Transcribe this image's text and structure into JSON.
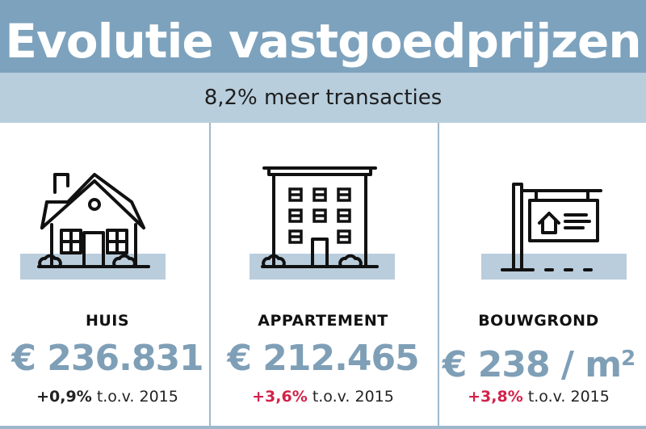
{
  "header": {
    "title": "Evolutie vastgoedprijzen",
    "subtitle": "8,2% meer transacties"
  },
  "colors": {
    "header_bg": "#7da2bd",
    "subheader_bg": "#b8cedd",
    "price_blue": "#7f9fb7",
    "ground_band": "#b9cddc",
    "positive_red": "#d2224a",
    "neutral_dark": "#222222"
  },
  "cards": [
    {
      "icon": "house-icon",
      "label": "HUIS",
      "price": "€ 236.831",
      "change_pct": "+0,9%",
      "change_text": "t.o.v. 2015",
      "change_color": "#222222"
    },
    {
      "icon": "apartment-building-icon",
      "label": "APPARTEMENT",
      "price": "€ 212.465",
      "change_pct": "+3,6%",
      "change_text": "t.o.v. 2015",
      "change_color": "#d2224a"
    },
    {
      "icon": "land-sign-icon",
      "label": "BOUWGROND",
      "price": "€ 238 / m",
      "price_sup": "2",
      "change_pct": "+3,8%",
      "change_text": "t.o.v. 2015",
      "change_color": "#d2224a"
    }
  ]
}
